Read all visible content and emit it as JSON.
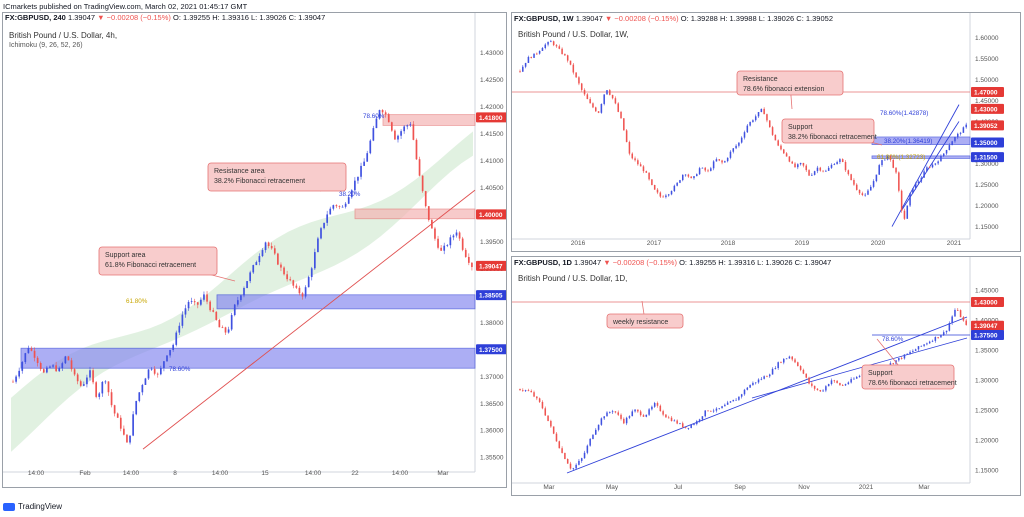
{
  "publisher": "ICmarkets published on TradingView.com, March 02, 2021 01:45:17 GMT",
  "header_main": {
    "symbol": "FX:GBPUSD, 240",
    "price": "1.39047",
    "change": "▼ −0.00208 (−0.15%)",
    "o": "O: 1.39255",
    "h": "H: 1.39316",
    "l": "L: 1.39026",
    "c": "C: 1.39047"
  },
  "header_weekly": {
    "symbol": "FX:GBPUSD, 1W",
    "price": "1.39047",
    "change": "▼ −0.00208 (−0.15%)",
    "o": "O: 1.39288",
    "h": "H: 1.39988",
    "l": "L: 1.39026",
    "c": "C: 1.39052"
  },
  "header_daily": {
    "symbol": "FX:GBPUSD, 1D",
    "price": "1.39047",
    "change": "▼ −0.00208 (−0.15%)",
    "o": "O: 1.39255",
    "h": "H: 1.39316",
    "l": "L: 1.39026",
    "c": "C: 1.39047"
  },
  "main_title": "British Pound / U.S. Dollar, 4h,",
  "main_indicator": "Ichimoku (9, 26, 52, 26)",
  "weekly_title": "British Pound / U.S. Dollar, 1W,",
  "daily_title": "British Pound / U.S. Dollar, 1D,",
  "footer": "TradingView",
  "colors": {
    "up": "#3f51e0",
    "down": "#ef5350",
    "resistance_zone": "#f4b4b4",
    "support_zone": "#8a8cf0",
    "cloud": "#c8e6c9",
    "trend": "#2e3fd8"
  },
  "chart_data": [
    {
      "id": "main",
      "type": "candlestick",
      "title": "British Pound / U.S. Dollar, 4h,",
      "ylim": [
        1.353,
        1.434
      ],
      "y_ticks": [
        "1.43000",
        "1.42500",
        "1.42000",
        "1.41500",
        "1.41000",
        "1.40500",
        "1.40000",
        "1.39500",
        "1.39000",
        "1.38500",
        "1.38000",
        "1.37500",
        "1.37000",
        "1.36500",
        "1.36000",
        "1.35500"
      ],
      "x_ticks": [
        "14:00",
        "Feb",
        "14:00",
        "8",
        "14:00",
        "15",
        "14:00",
        "22",
        "14:00",
        "Mar"
      ],
      "close_path": [
        1.369,
        1.372,
        1.3755,
        1.3735,
        1.3705,
        1.372,
        1.371,
        1.374,
        1.37,
        1.368,
        1.371,
        1.366,
        1.37,
        1.364,
        1.361,
        1.357,
        1.365,
        1.369,
        1.372,
        1.37,
        1.374,
        1.376,
        1.381,
        1.384,
        1.383,
        1.385,
        1.382,
        1.379,
        1.378,
        1.383,
        1.386,
        1.389,
        1.392,
        1.395,
        1.393,
        1.39,
        1.388,
        1.386,
        1.385,
        1.39,
        1.396,
        1.4,
        1.402,
        1.401,
        1.404,
        1.407,
        1.41,
        1.415,
        1.42,
        1.418,
        1.414,
        1.416,
        1.417,
        1.408,
        1.401,
        1.396,
        1.393,
        1.395,
        1.397,
        1.393,
        1.3905
      ],
      "price_labels": [
        {
          "value": "1.41800",
          "kind": "resistance"
        },
        {
          "value": "1.40000",
          "kind": "resistance"
        },
        {
          "value": "1.39047",
          "kind": "current"
        },
        {
          "value": "1.38505",
          "kind": "support"
        },
        {
          "value": "1.37500",
          "kind": "support"
        }
      ],
      "annotations": [
        {
          "text": "Resistance area",
          "text2": "38.2% Fibonacci retracement"
        },
        {
          "text": "Support area",
          "text2": "61.8% Fibonacci retracement"
        }
      ],
      "fib_labels": [
        "78.60%",
        "38.20%",
        "61.80%",
        "78.60%"
      ]
    },
    {
      "id": "weekly",
      "type": "candlestick",
      "title": "British Pound / U.S. Dollar, 1W,",
      "ylim": [
        1.13,
        1.615
      ],
      "y_ticks": [
        "1.60000",
        "1.55000",
        "1.50000",
        "1.45000",
        "1.40000",
        "1.35000",
        "1.30000",
        "1.25000",
        "1.20000",
        "1.15000"
      ],
      "x_ticks": [
        "2016",
        "2017",
        "2018",
        "2019",
        "2020",
        "2021"
      ],
      "close_path": [
        1.52,
        1.55,
        1.56,
        1.58,
        1.59,
        1.57,
        1.55,
        1.51,
        1.47,
        1.44,
        1.42,
        1.48,
        1.45,
        1.4,
        1.32,
        1.3,
        1.28,
        1.24,
        1.22,
        1.23,
        1.25,
        1.28,
        1.26,
        1.29,
        1.28,
        1.31,
        1.3,
        1.33,
        1.35,
        1.39,
        1.41,
        1.43,
        1.38,
        1.34,
        1.32,
        1.29,
        1.3,
        1.27,
        1.29,
        1.28,
        1.3,
        1.31,
        1.27,
        1.24,
        1.22,
        1.25,
        1.3,
        1.32,
        1.28,
        1.16,
        1.24,
        1.26,
        1.29,
        1.3,
        1.32,
        1.35,
        1.37,
        1.39
      ],
      "price_labels": [
        {
          "value": "1.47000",
          "kind": "resistance"
        },
        {
          "value": "1.43000",
          "kind": "resistance"
        },
        {
          "value": "1.39052",
          "kind": "current"
        },
        {
          "value": "1.35000",
          "kind": "support"
        },
        {
          "value": "1.31500",
          "kind": "support"
        }
      ],
      "annotations": [
        {
          "text": "Resistance",
          "text2": "78.6% fibonacci extension"
        },
        {
          "text": "Support",
          "text2": "38.2% fibonacci retracement"
        }
      ],
      "fib_labels": [
        "78.60%(1.42878)",
        "38.20%(1.36419)",
        "61.80%(1.32723)"
      ]
    },
    {
      "id": "daily",
      "type": "candlestick",
      "title": "British Pound / U.S. Dollar, 1D,",
      "ylim": [
        1.135,
        1.475
      ],
      "y_ticks": [
        "1.45000",
        "1.40000",
        "1.35000",
        "1.30000",
        "1.25000",
        "1.20000",
        "1.15000"
      ],
      "x_ticks": [
        "Mar",
        "May",
        "Jul",
        "Sep",
        "Nov",
        "2021",
        "Mar"
      ],
      "close_path": [
        1.285,
        1.28,
        1.26,
        1.22,
        1.18,
        1.15,
        1.17,
        1.21,
        1.24,
        1.25,
        1.23,
        1.25,
        1.24,
        1.26,
        1.24,
        1.23,
        1.22,
        1.23,
        1.25,
        1.25,
        1.26,
        1.27,
        1.29,
        1.3,
        1.31,
        1.33,
        1.34,
        1.32,
        1.29,
        1.28,
        1.3,
        1.29,
        1.3,
        1.31,
        1.3,
        1.32,
        1.33,
        1.34,
        1.35,
        1.36,
        1.37,
        1.38,
        1.42,
        1.39
      ],
      "price_labels": [
        {
          "value": "1.43000",
          "kind": "resistance"
        },
        {
          "value": "1.39047",
          "kind": "current"
        },
        {
          "value": "1.37500",
          "kind": "support"
        }
      ],
      "annotations": [
        {
          "text": "weekly resistance",
          "text2": ""
        },
        {
          "text": "Support",
          "text2": "78.6% fibonacci retracement"
        }
      ],
      "fib_labels": [
        "78.60%"
      ]
    }
  ]
}
